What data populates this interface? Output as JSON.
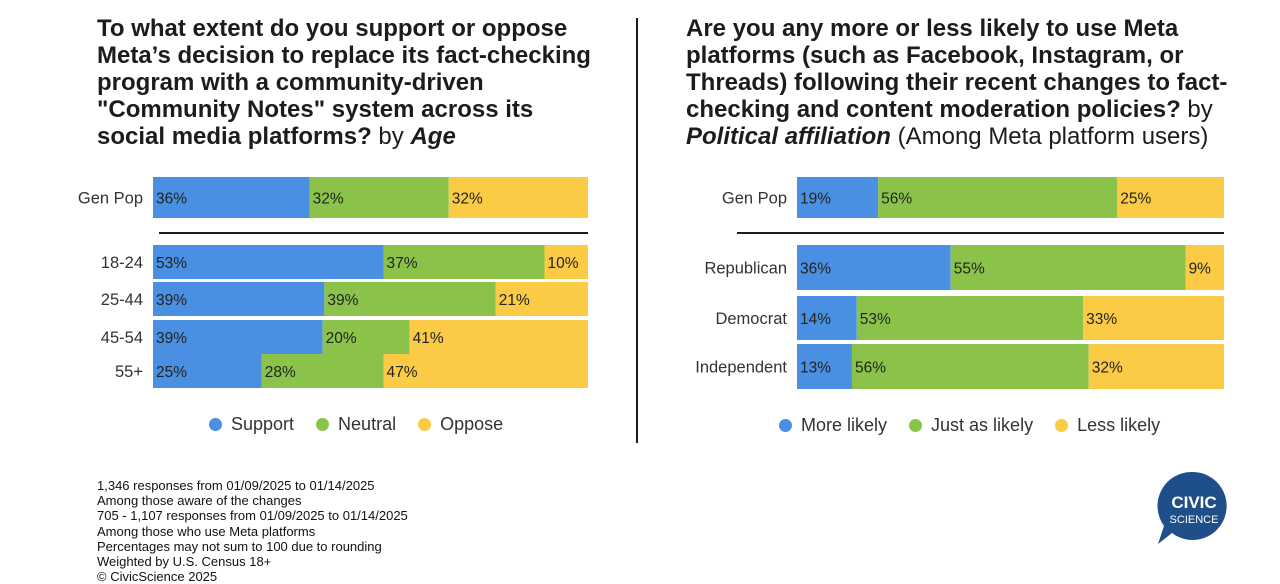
{
  "colors": {
    "support": "#4a90e2",
    "neutral": "#8bc34a",
    "oppose": "#fbcb45",
    "logo_bg": "#1f4f8b"
  },
  "left": {
    "title_bold": "To what extent do you support or oppose Meta’s decision to replace its fact-checking program with a community-driven \"Community Notes\" system across its social media platforms?",
    "title_by": "by",
    "title_italic": "Age"
  },
  "right": {
    "title_bold": "Are you any more or less likely to use Meta platforms (such as Facebook, Instagram, or Threads) following their recent changes to fact-checking and content moderation policies?",
    "title_by": "by",
    "title_italic": "Political affiliation",
    "title_suffix": "(Among Meta platform users)"
  },
  "chart_data": [
    {
      "type": "bar",
      "stacked": true,
      "orientation": "horizontal",
      "categories": [
        "Gen Pop",
        "18-24",
        "25-44",
        "45-54",
        "55+"
      ],
      "series": [
        {
          "name": "Support",
          "values": [
            36,
            53,
            39,
            39,
            25
          ]
        },
        {
          "name": "Neutral",
          "values": [
            32,
            37,
            39,
            20,
            28
          ]
        },
        {
          "name": "Oppose",
          "values": [
            32,
            10,
            21,
            41,
            47
          ]
        }
      ],
      "legend": "bottom"
    },
    {
      "type": "bar",
      "stacked": true,
      "orientation": "horizontal",
      "categories": [
        "Gen Pop",
        "Republican",
        "Democrat",
        "Independent"
      ],
      "series": [
        {
          "name": "More likely",
          "values": [
            19,
            36,
            14,
            13
          ]
        },
        {
          "name": "Just as likely",
          "values": [
            56,
            55,
            53,
            56
          ]
        },
        {
          "name": "Less likely",
          "values": [
            25,
            9,
            33,
            32
          ]
        }
      ],
      "legend": "bottom"
    }
  ],
  "notes": [
    "1,346 responses from 01/09/2025 to 01/14/2025",
    "Among those aware of the changes",
    "705 - 1,107 responses from 01/09/2025 to 01/14/2025",
    "Among those who use Meta platforms",
    "Percentages may not sum to 100 due to rounding",
    "Weighted by U.S. Census 18+",
    "© CivicScience 2025"
  ],
  "logo": {
    "line1": "CIVIC",
    "line2": "SCIENCE"
  }
}
